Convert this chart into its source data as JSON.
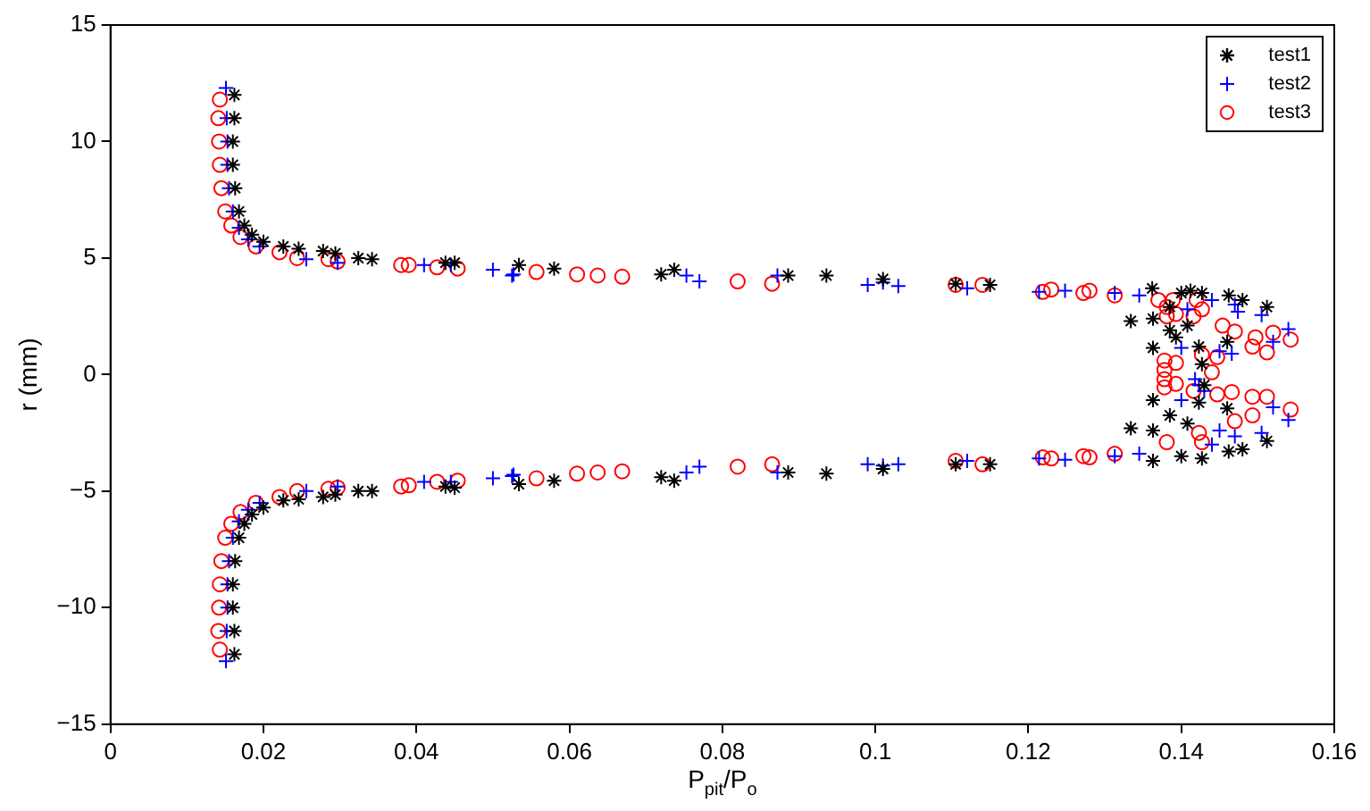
{
  "chart_data": {
    "type": "scatter",
    "xlabel": "P$_{pit}$/P$_{o}$",
    "ylabel": "r (mm)",
    "xlim": [
      0,
      0.16
    ],
    "ylim": [
      -15,
      15
    ],
    "xticks": [
      0,
      0.02,
      0.04,
      0.06,
      0.08,
      0.1,
      0.12,
      0.14,
      0.16
    ],
    "yticks": [
      {
        "value": -15,
        "label": "−15"
      },
      {
        "value": -10,
        "label": "−10"
      },
      {
        "value": -5,
        "label": "−5"
      },
      0,
      5,
      10,
      15
    ],
    "grid": false,
    "legend": "top right",
    "series": [
      {
        "name": "test1",
        "color": "#000000",
        "x": [
          0.0162,
          0.0162,
          0.016,
          0.016,
          0.0163,
          0.0168,
          0.0175,
          0.0185,
          0.02,
          0.0226,
          0.0246,
          0.0278,
          0.0294,
          0.0324,
          0.0342,
          0.0438,
          0.045,
          0.0534,
          0.058,
          0.072,
          0.0737,
          0.0886,
          0.0936,
          0.101,
          0.1105,
          0.115,
          0.1334,
          0.1362,
          0.1363,
          0.1363,
          0.1385,
          0.14,
          0.1412,
          0.1427,
          0.1408,
          0.1393,
          0.1385,
          0.1423,
          0.1427,
          0.1462,
          0.148,
          0.1512,
          0.146,
          0.143,
          0.1423,
          0.1408,
          0.1385,
          0.146,
          0.1363,
          0.1334,
          0.1363,
          0.1363,
          0.14,
          0.1427,
          0.1462,
          0.148,
          0.1512,
          0.115,
          0.1105,
          0.101,
          0.0936,
          0.0886,
          0.0737,
          0.072,
          0.058,
          0.0534,
          0.045,
          0.0438,
          0.0342,
          0.0324,
          0.0294,
          0.0278,
          0.0246,
          0.0226,
          0.02,
          0.0185,
          0.0175,
          0.0168,
          0.0163,
          0.016,
          0.016,
          0.0162,
          0.0162
        ],
        "values": [
          12,
          11,
          10,
          9,
          8,
          7,
          6.4,
          6,
          5.7,
          5.5,
          5.4,
          5.3,
          5.2,
          5,
          4.95,
          4.8,
          4.8,
          4.7,
          4.55,
          4.3,
          4.5,
          4.25,
          4.25,
          4.1,
          3.9,
          3.85,
          2.3,
          3.7,
          2.4,
          1.15,
          2.9,
          3.5,
          3.6,
          3.5,
          2.1,
          1.6,
          1.9,
          1.2,
          0.45,
          3.4,
          3.2,
          2.9,
          1.4,
          -0.45,
          -1.2,
          -2.1,
          -1.75,
          -1.45,
          -1.1,
          -2.3,
          -2.4,
          -3.7,
          -3.5,
          -3.6,
          -3.3,
          -3.2,
          -2.85,
          -3.85,
          -3.85,
          -4.05,
          -4.25,
          -4.2,
          -4.55,
          -4.4,
          -4.55,
          -4.7,
          -4.85,
          -4.8,
          -5,
          -5,
          -5.15,
          -5.25,
          -5.35,
          -5.4,
          -5.7,
          -6,
          -6.4,
          -7,
          -8,
          -9,
          -10,
          -11,
          -12
        ]
      },
      {
        "name": "test2",
        "color": "#0000ff",
        "marker": "cross",
        "x": [
          0.0151,
          0.0152,
          0.0153,
          0.0153,
          0.0155,
          0.016,
          0.0168,
          0.018,
          0.0195,
          0.0256,
          0.0297,
          0.041,
          0.0445,
          0.05,
          0.0525,
          0.0527,
          0.0753,
          0.077,
          0.0872,
          0.099,
          0.101,
          0.103,
          0.112,
          0.1214,
          0.1248,
          0.1313,
          0.1345,
          0.1408,
          0.144,
          0.147,
          0.1474,
          0.1505,
          0.154,
          0.152,
          0.1466,
          0.145,
          0.14,
          0.1418,
          0.1423,
          0.143,
          0.14,
          0.145,
          0.147,
          0.1505,
          0.154,
          0.152,
          0.144,
          0.1345,
          0.1313,
          0.1248,
          0.1214,
          0.112,
          0.103,
          0.101,
          0.099,
          0.0872,
          0.077,
          0.0753,
          0.0527,
          0.0525,
          0.05,
          0.0445,
          0.041,
          0.0297,
          0.0256,
          0.0195,
          0.018,
          0.0168,
          0.016,
          0.0155,
          0.0153,
          0.0153,
          0.0152,
          0.0151
        ],
        "values": [
          12.3,
          11,
          10,
          9,
          8,
          7,
          6.3,
          5.8,
          5.5,
          4.95,
          4.8,
          4.7,
          4.7,
          4.5,
          4.25,
          4.3,
          4.25,
          4,
          4.25,
          3.85,
          3.95,
          3.8,
          3.7,
          3.55,
          3.6,
          3.5,
          3.4,
          2.8,
          3.2,
          3,
          2.7,
          2.55,
          1.95,
          1.4,
          0.9,
          1,
          1.15,
          -0.2,
          -0.45,
          -0.7,
          -1.1,
          -2.4,
          -2.65,
          -2.5,
          -1.95,
          -1.4,
          -3,
          -3.4,
          -3.5,
          -3.65,
          -3.6,
          -3.7,
          -3.85,
          -3.9,
          -3.85,
          -4.2,
          -3.95,
          -4.2,
          -4.3,
          -4.35,
          -4.45,
          -4.6,
          -4.6,
          -4.8,
          -5,
          -5.5,
          -5.8,
          -6.3,
          -7,
          -8,
          -9,
          -10,
          -11,
          -12.3
        ]
      },
      {
        "name": "test3",
        "color": "#ff0000",
        "marker": "circle",
        "x": [
          0.0143,
          0.0141,
          0.0142,
          0.0143,
          0.0145,
          0.015,
          0.0158,
          0.017,
          0.019,
          0.0221,
          0.0244,
          0.0285,
          0.0297,
          0.038,
          0.039,
          0.0427,
          0.0454,
          0.0557,
          0.061,
          0.0637,
          0.0669,
          0.082,
          0.0865,
          0.1105,
          0.114,
          0.1219,
          0.123,
          0.1272,
          0.128,
          0.1313,
          0.137,
          0.1381,
          0.1389,
          0.142,
          0.1427,
          0.1381,
          0.1393,
          0.1416,
          0.1454,
          0.147,
          0.1493,
          0.1497,
          0.1512,
          0.1543,
          0.152,
          0.1378,
          0.1378,
          0.1378,
          0.1378,
          0.1393,
          0.1393,
          0.1416,
          0.1427,
          0.144,
          0.1447,
          0.1447,
          0.1466,
          0.1493,
          0.1512,
          0.1543,
          0.1381,
          0.1423,
          0.1427,
          0.147,
          0.1493,
          0.1219,
          0.123,
          0.1272,
          0.128,
          0.1313,
          0.114,
          0.1105,
          0.0865,
          0.082,
          0.0669,
          0.0637,
          0.061,
          0.0557,
          0.0454,
          0.0427,
          0.039,
          0.038,
          0.0297,
          0.0285,
          0.0244,
          0.0221,
          0.019,
          0.017,
          0.0158,
          0.015,
          0.0145,
          0.0143,
          0.0142,
          0.0141,
          0.0143
        ],
        "values": [
          11.8,
          11,
          10,
          9,
          8,
          7,
          6.4,
          5.9,
          5.5,
          5.25,
          5,
          4.95,
          4.85,
          4.7,
          4.7,
          4.6,
          4.55,
          4.4,
          4.3,
          4.25,
          4.2,
          4,
          3.9,
          3.85,
          3.85,
          3.55,
          3.65,
          3.5,
          3.6,
          3.4,
          3.2,
          2.9,
          3.2,
          3.2,
          2.8,
          2.5,
          2.6,
          2.5,
          2.1,
          1.85,
          1.2,
          1.6,
          0.95,
          1.5,
          1.8,
          0.6,
          0.2,
          -0.2,
          -0.55,
          0.5,
          -0.4,
          -0.7,
          0.85,
          0.1,
          0.75,
          -0.85,
          -0.75,
          -0.95,
          -0.95,
          -1.5,
          -2.9,
          -2.5,
          -2.9,
          -2,
          -1.75,
          -3.55,
          -3.6,
          -3.5,
          -3.55,
          -3.4,
          -3.85,
          -3.7,
          -3.85,
          -3.95,
          -4.15,
          -4.2,
          -4.25,
          -4.45,
          -4.55,
          -4.6,
          -4.75,
          -4.8,
          -4.85,
          -4.9,
          -5,
          -5.25,
          -5.5,
          -5.9,
          -6.4,
          -7,
          -8,
          -9,
          -10,
          -11,
          -11.8
        ]
      }
    ]
  }
}
